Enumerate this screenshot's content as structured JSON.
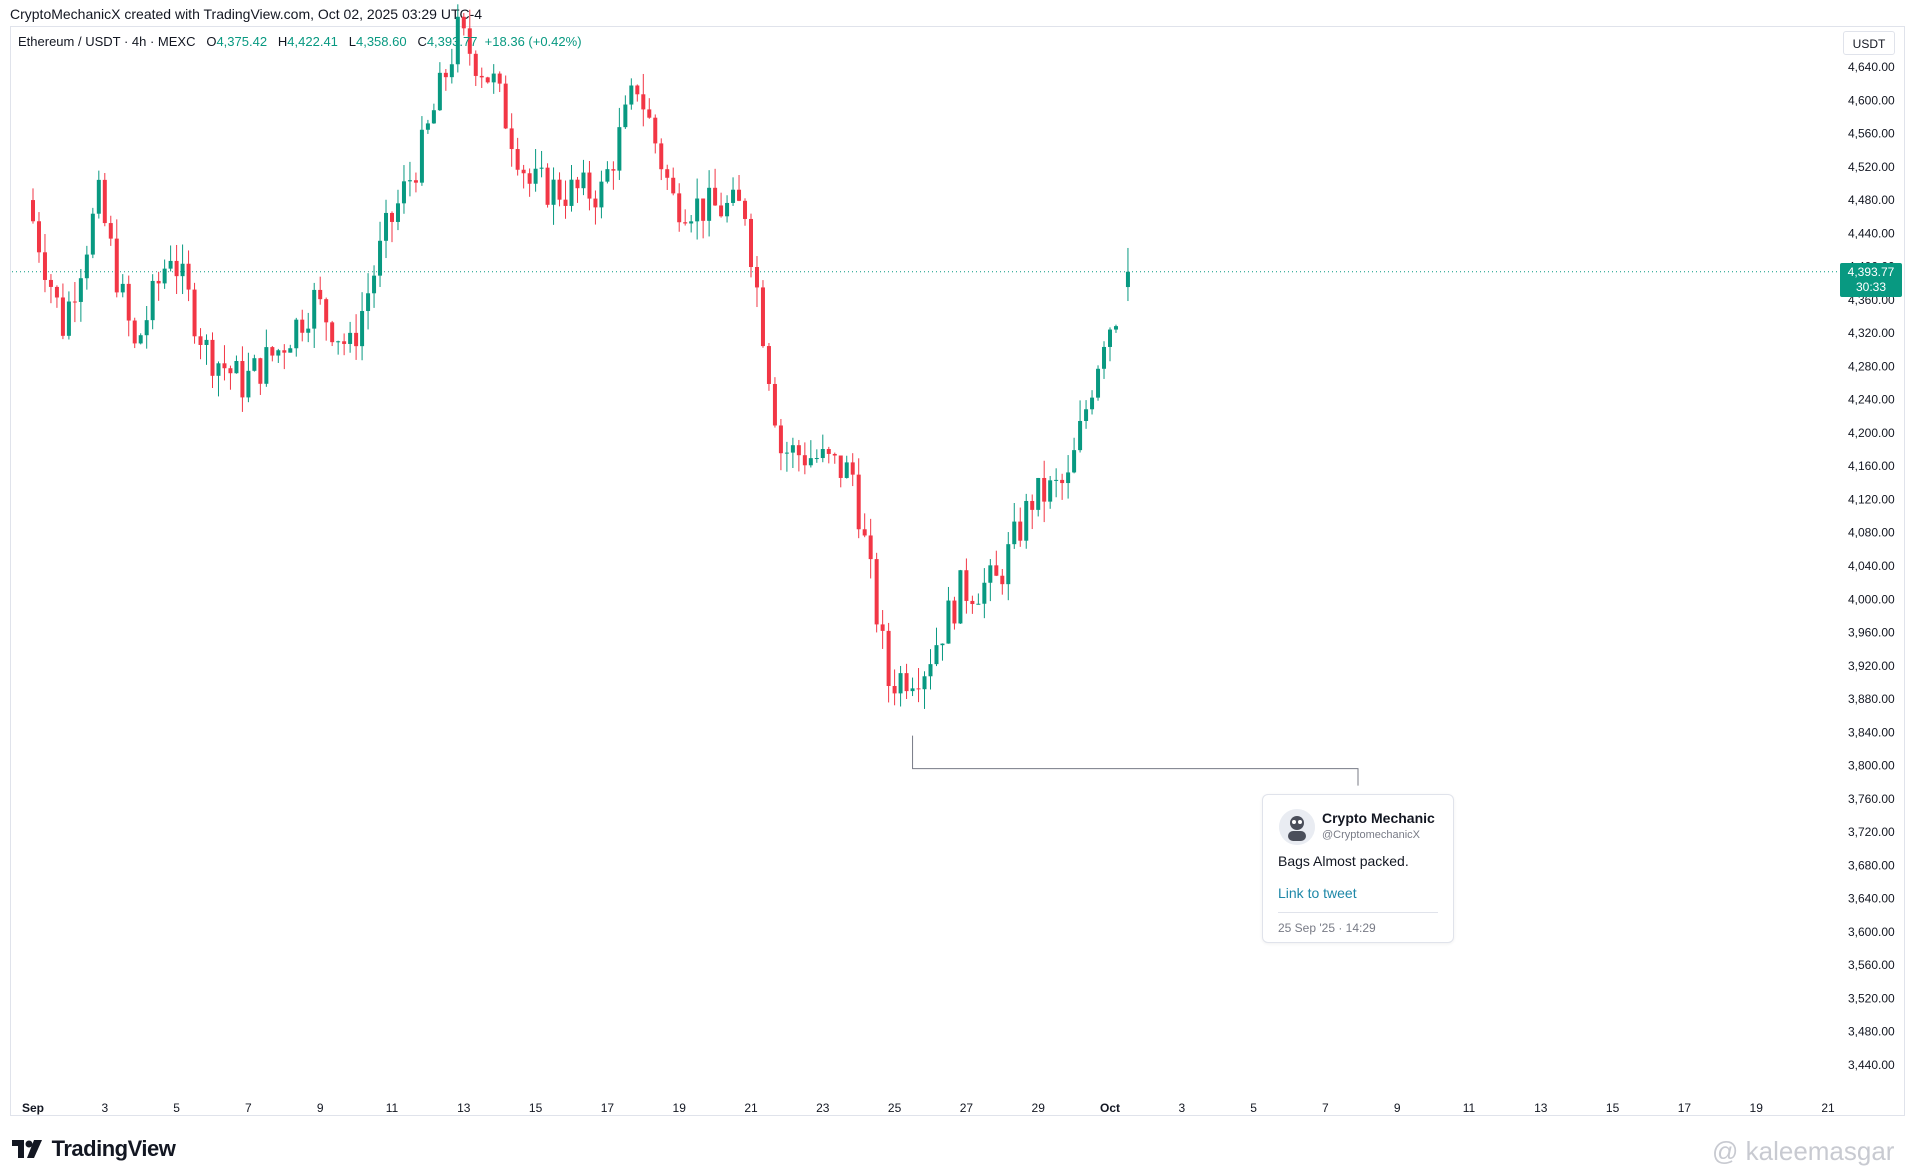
{
  "header": {
    "creator_line": "CryptoMechanicX created with TradingView.com, Oct 02, 2025 03:29 UTC-4"
  },
  "legend": {
    "symbol": "Ethereum / USDT · 4h · MEXC",
    "o_label": "O",
    "o_value": "4,375.42",
    "h_label": "H",
    "h_value": "4,422.41",
    "l_label": "L",
    "l_value": "4,358.60",
    "c_label": "C",
    "c_value": "4,393.77",
    "change": "+18.36 (+0.42%)"
  },
  "currency_box": "USDT",
  "last_price": {
    "value": "4,393.77",
    "countdown": "30:33"
  },
  "tweet": {
    "name": "Crypto Mechanic",
    "handle": "@CryptomechanicX",
    "text": "Bags Almost packed.",
    "link_text": "Link to tweet",
    "timestamp": "25 Sep '25 · 14:29"
  },
  "footer": {
    "logo_text": "TradingView",
    "watermark": "@ kaleemasgar"
  },
  "colors": {
    "up": "#089981",
    "down": "#f23645",
    "grid": "#e0e3eb",
    "text": "#131722"
  },
  "chart_data": {
    "type": "candlestick",
    "title": "Ethereum / USDT · 4h · MEXC",
    "ylabel": "USDT",
    "ylim": [
      3420,
      4680
    ],
    "price_ticks": [
      "4,640.00",
      "4,600.00",
      "4,560.00",
      "4,520.00",
      "4,480.00",
      "4,440.00",
      "4,400.00",
      "4,360.00",
      "4,320.00",
      "4,280.00",
      "4,240.00",
      "4,200.00",
      "4,160.00",
      "4,120.00",
      "4,080.00",
      "4,040.00",
      "4,000.00",
      "3,960.00",
      "3,920.00",
      "3,880.00",
      "3,840.00",
      "3,800.00",
      "3,760.00",
      "3,720.00",
      "3,680.00",
      "3,640.00",
      "3,600.00",
      "3,560.00",
      "3,520.00",
      "3,480.00",
      "3,440.00"
    ],
    "date_ticks": [
      "Sep",
      "3",
      "5",
      "7",
      "9",
      "11",
      "13",
      "15",
      "17",
      "19",
      "21",
      "23",
      "25",
      "27",
      "29",
      "Oct",
      "3",
      "5",
      "7",
      "9",
      "11",
      "13",
      "15",
      "17",
      "19",
      "21"
    ],
    "last_price": 4393.77,
    "annotation": {
      "type": "low-marker",
      "date": "Sep 25",
      "price": 3800
    },
    "series": [
      {
        "name": "Ethereum / USDT",
        "period": "4h",
        "ohlc_keypoints": [
          {
            "date": "Sep 1",
            "close": 4480
          },
          {
            "date": "Sep 2",
            "close": 4330
          },
          {
            "date": "Sep 3",
            "close": 4480
          },
          {
            "date": "Sep 4",
            "close": 4300
          },
          {
            "date": "Sep 5",
            "close": 4420
          },
          {
            "date": "Sep 6",
            "close": 4300
          },
          {
            "date": "Sep 7",
            "close": 4260
          },
          {
            "date": "Sep 8",
            "close": 4300
          },
          {
            "date": "Sep 9",
            "close": 4360
          },
          {
            "date": "Sep 10",
            "close": 4300
          },
          {
            "date": "Sep 11",
            "close": 4440
          },
          {
            "date": "Sep 12",
            "close": 4540
          },
          {
            "date": "Sep 13",
            "close": 4680
          },
          {
            "date": "Sep 14",
            "close": 4620
          },
          {
            "date": "Sep 15",
            "close": 4500
          },
          {
            "date": "Sep 16",
            "close": 4490
          },
          {
            "date": "Sep 17",
            "close": 4490
          },
          {
            "date": "Sep 18",
            "close": 4620
          },
          {
            "date": "Sep 19",
            "close": 4480
          },
          {
            "date": "Sep 20",
            "close": 4470
          },
          {
            "date": "Sep 21",
            "close": 4470
          },
          {
            "date": "Sep 22",
            "close": 4180
          },
          {
            "date": "Sep 23",
            "close": 4170
          },
          {
            "date": "Sep 24",
            "close": 4150
          },
          {
            "date": "Sep 25",
            "close": 3900
          },
          {
            "date": "Sep 26",
            "close": 3920
          },
          {
            "date": "Sep 27",
            "close": 4010
          },
          {
            "date": "Sep 28",
            "close": 4020
          },
          {
            "date": "Sep 29",
            "close": 4120
          },
          {
            "date": "Sep 30",
            "close": 4140
          },
          {
            "date": "Oct 1",
            "close": 4320
          },
          {
            "date": "Oct 2",
            "close": 4393.77
          }
        ]
      }
    ]
  }
}
